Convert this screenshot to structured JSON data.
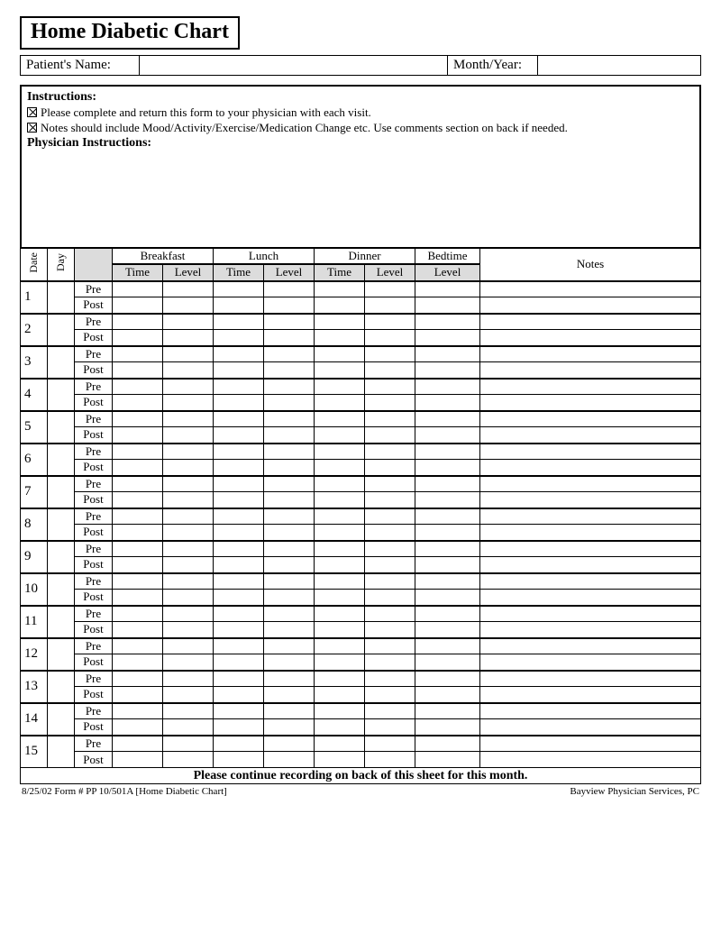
{
  "title": "Home Diabetic Chart",
  "patient": {
    "name_label": "Patient's Name:",
    "name_value": "",
    "month_label": "Month/Year:",
    "month_value": ""
  },
  "instructions": {
    "header": "Instructions:",
    "items": [
      "Please complete and return this form to your physician with each visit.",
      "Notes should include Mood/Activity/Exercise/Medication Change etc.  Use comments section on back if needed."
    ],
    "physician_header": "Physician Instructions:"
  },
  "table": {
    "col_date": "Date",
    "col_day": "Day",
    "meals": [
      "Breakfast",
      "Lunch",
      "Dinner"
    ],
    "bedtime": "Bedtime",
    "notes": "Notes",
    "sub_time": "Time",
    "sub_level": "Level",
    "prepost": [
      "Pre",
      "Post"
    ],
    "row_count": 15,
    "continue_text": "Please continue recording on back of this sheet for this month.",
    "colors": {
      "header_gray": "#dcdcdc",
      "border": "#000000",
      "background": "#ffffff"
    }
  },
  "footer": {
    "left": "8/25/02  Form #  PP 10/501A    [Home Diabetic Chart]",
    "right": "Bayview Physician Services, PC"
  }
}
